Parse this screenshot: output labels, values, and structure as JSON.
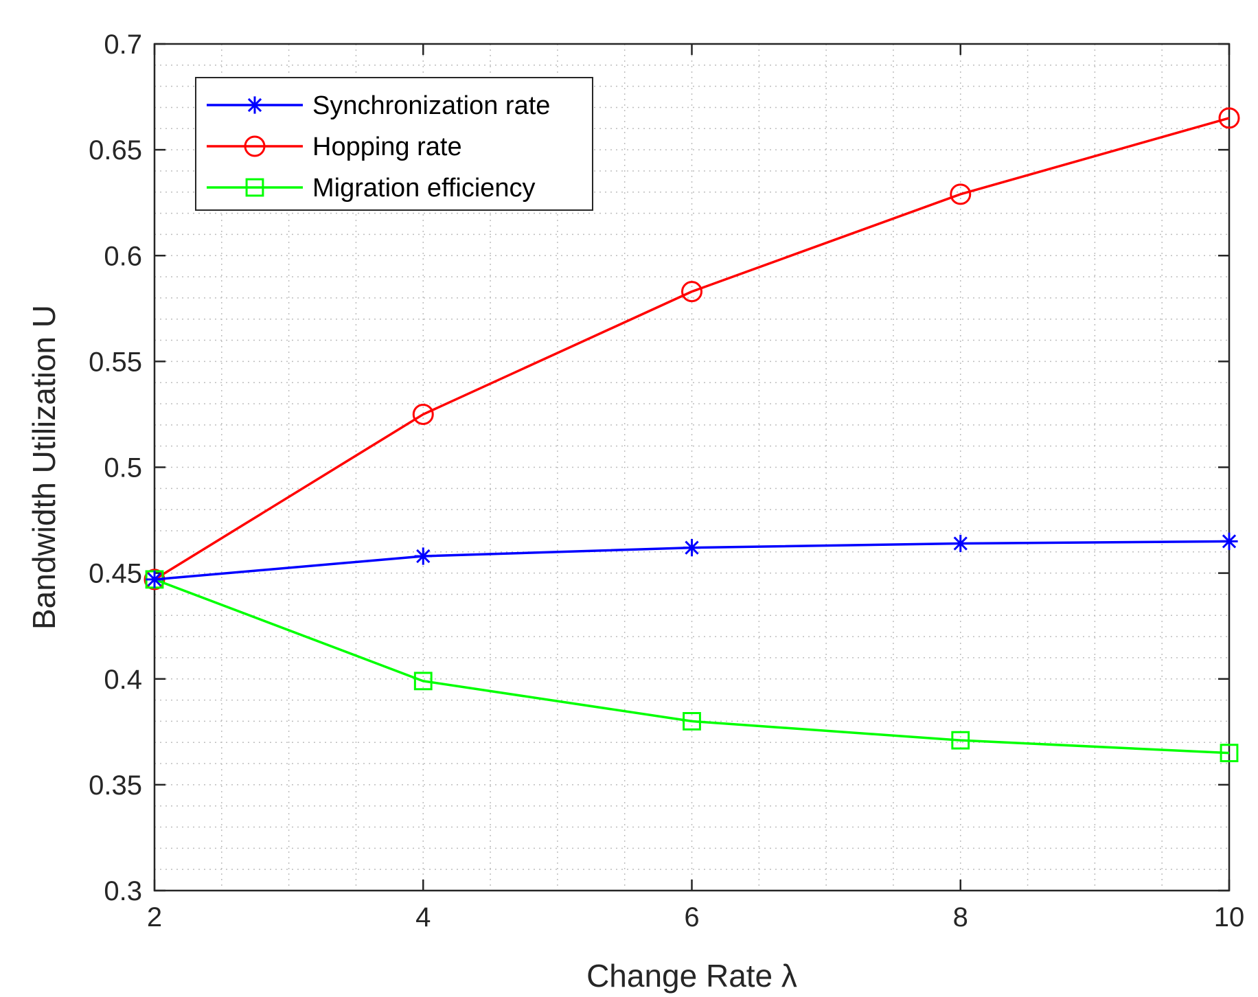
{
  "chart_data": {
    "type": "line",
    "title": "",
    "xlabel": "Change Rate λ",
    "ylabel": "Bandwidth Utilization U",
    "x": [
      2,
      4,
      6,
      8,
      10
    ],
    "xlim": [
      2,
      10
    ],
    "ylim": [
      0.3,
      0.7
    ],
    "xticks": [
      2,
      4,
      6,
      8,
      10
    ],
    "xtick_labels": [
      "2",
      "4",
      "6",
      "8",
      "10"
    ],
    "yticks": [
      0.3,
      0.35,
      0.4,
      0.45,
      0.5,
      0.55,
      0.6,
      0.65,
      0.7
    ],
    "ytick_labels": [
      "0.3",
      "0.35",
      "0.4",
      "0.45",
      "0.5",
      "0.55",
      "0.6",
      "0.65",
      "0.7"
    ],
    "grid": "major and minor (dotted)",
    "legend_position": "top-left",
    "series": [
      {
        "name": "Synchronization rate",
        "color": "#0000ff",
        "marker": "asterisk",
        "values": [
          0.447,
          0.458,
          0.462,
          0.464,
          0.465
        ]
      },
      {
        "name": "Hopping rate",
        "color": "#ff0000",
        "marker": "circle",
        "values": [
          0.447,
          0.525,
          0.583,
          0.629,
          0.665
        ]
      },
      {
        "name": "Migration efficiency",
        "color": "#00ff00",
        "marker": "square",
        "values": [
          0.447,
          0.399,
          0.38,
          0.371,
          0.365
        ]
      }
    ]
  }
}
